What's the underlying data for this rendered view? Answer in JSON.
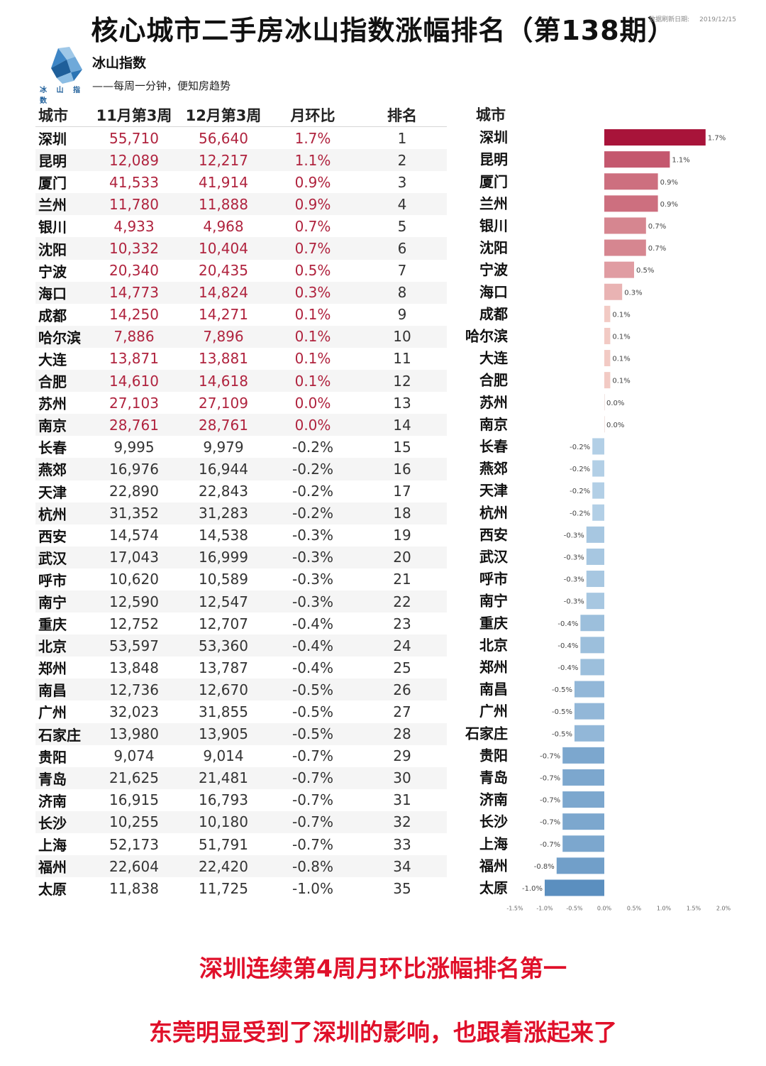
{
  "title": "核心城市二手房冰山指数涨幅排名（第138期）",
  "update_label": "数据刷新日期:",
  "update_date": "2019/12/15",
  "brand": {
    "logo_text": "冰 山 指 数",
    "name": "冰山指数",
    "slogan": "——每周一分钟，便知房趋势"
  },
  "table": {
    "headers": [
      "城市",
      "11月第3周",
      "12月第3周",
      "月环比",
      "排名"
    ],
    "rows": [
      [
        "深圳",
        "55,710",
        "56,640",
        "1.7%",
        "1"
      ],
      [
        "昆明",
        "12,089",
        "12,217",
        "1.1%",
        "2"
      ],
      [
        "厦门",
        "41,533",
        "41,914",
        "0.9%",
        "3"
      ],
      [
        "兰州",
        "11,780",
        "11,888",
        "0.9%",
        "4"
      ],
      [
        "银川",
        "4,933",
        "4,968",
        "0.7%",
        "5"
      ],
      [
        "沈阳",
        "10,332",
        "10,404",
        "0.7%",
        "6"
      ],
      [
        "宁波",
        "20,340",
        "20,435",
        "0.5%",
        "7"
      ],
      [
        "海口",
        "14,773",
        "14,824",
        "0.3%",
        "8"
      ],
      [
        "成都",
        "14,250",
        "14,271",
        "0.1%",
        "9"
      ],
      [
        "哈尔滨",
        "7,886",
        "7,896",
        "0.1%",
        "10"
      ],
      [
        "大连",
        "13,871",
        "13,881",
        "0.1%",
        "11"
      ],
      [
        "合肥",
        "14,610",
        "14,618",
        "0.1%",
        "12"
      ],
      [
        "苏州",
        "27,103",
        "27,109",
        "0.0%",
        "13"
      ],
      [
        "南京",
        "28,761",
        "28,761",
        "0.0%",
        "14"
      ],
      [
        "长春",
        "9,995",
        "9,979",
        "-0.2%",
        "15"
      ],
      [
        "燕郊",
        "16,976",
        "16,944",
        "-0.2%",
        "16"
      ],
      [
        "天津",
        "22,890",
        "22,843",
        "-0.2%",
        "17"
      ],
      [
        "杭州",
        "31,352",
        "31,283",
        "-0.2%",
        "18"
      ],
      [
        "西安",
        "14,574",
        "14,538",
        "-0.3%",
        "19"
      ],
      [
        "武汉",
        "17,043",
        "16,999",
        "-0.3%",
        "20"
      ],
      [
        "呼市",
        "10,620",
        "10,589",
        "-0.3%",
        "21"
      ],
      [
        "南宁",
        "12,590",
        "12,547",
        "-0.3%",
        "22"
      ],
      [
        "重庆",
        "12,752",
        "12,707",
        "-0.4%",
        "23"
      ],
      [
        "北京",
        "53,597",
        "53,360",
        "-0.4%",
        "24"
      ],
      [
        "郑州",
        "13,848",
        "13,787",
        "-0.4%",
        "25"
      ],
      [
        "南昌",
        "12,736",
        "12,670",
        "-0.5%",
        "26"
      ],
      [
        "广州",
        "32,023",
        "31,855",
        "-0.5%",
        "27"
      ],
      [
        "石家庄",
        "13,980",
        "13,905",
        "-0.5%",
        "28"
      ],
      [
        "贵阳",
        "9,074",
        "9,014",
        "-0.7%",
        "29"
      ],
      [
        "青岛",
        "21,625",
        "21,481",
        "-0.7%",
        "30"
      ],
      [
        "济南",
        "16,915",
        "16,793",
        "-0.7%",
        "31"
      ],
      [
        "长沙",
        "10,255",
        "10,180",
        "-0.7%",
        "32"
      ],
      [
        "上海",
        "52,173",
        "51,791",
        "-0.7%",
        "33"
      ],
      [
        "福州",
        "22,604",
        "22,420",
        "-0.8%",
        "34"
      ],
      [
        "太原",
        "11,838",
        "11,725",
        "-1.0%",
        "35"
      ]
    ]
  },
  "chart_data": {
    "type": "bar",
    "orientation": "horizontal",
    "category_header": "城市",
    "categories": [
      "深圳",
      "昆明",
      "厦门",
      "兰州",
      "银川",
      "沈阳",
      "宁波",
      "海口",
      "成都",
      "哈尔滨",
      "大连",
      "合肥",
      "苏州",
      "南京",
      "长春",
      "燕郊",
      "天津",
      "杭州",
      "西安",
      "武汉",
      "呼市",
      "南宁",
      "重庆",
      "北京",
      "郑州",
      "南昌",
      "广州",
      "石家庄",
      "贵阳",
      "青岛",
      "济南",
      "长沙",
      "上海",
      "福州",
      "太原"
    ],
    "values": [
      1.7,
      1.1,
      0.9,
      0.9,
      0.7,
      0.7,
      0.5,
      0.3,
      0.1,
      0.1,
      0.1,
      0.1,
      0.0,
      0.0,
      -0.2,
      -0.2,
      -0.2,
      -0.2,
      -0.3,
      -0.3,
      -0.3,
      -0.3,
      -0.4,
      -0.4,
      -0.4,
      -0.5,
      -0.5,
      -0.5,
      -0.7,
      -0.7,
      -0.7,
      -0.7,
      -0.7,
      -0.8,
      -1.0
    ],
    "data_labels": [
      "1.7%",
      "1.1%",
      "0.9%",
      "0.9%",
      "0.7%",
      "0.7%",
      "0.5%",
      "0.3%",
      "0.1%",
      "0.1%",
      "0.1%",
      "0.1%",
      "0.0%",
      "0.0%",
      "-0.2%",
      "-0.2%",
      "-0.2%",
      "-0.2%",
      "-0.3%",
      "-0.3%",
      "-0.3%",
      "-0.3%",
      "-0.4%",
      "-0.4%",
      "-0.4%",
      "-0.5%",
      "-0.5%",
      "-0.5%",
      "-0.7%",
      "-0.7%",
      "-0.7%",
      "-0.7%",
      "-0.7%",
      "-0.8%",
      "-1.0%"
    ],
    "xlim": [
      -1.5,
      2.0
    ],
    "x_ticks": [
      -1.5,
      -1.0,
      -0.5,
      0.0,
      0.5,
      1.0,
      1.5,
      2.0
    ],
    "x_tick_labels": [
      "-1.5%",
      "-1.0%",
      "-0.5%",
      "0.0%",
      "0.5%",
      "1.0%",
      "1.5%",
      "2.0%"
    ],
    "grid": false,
    "colors": {
      "positive_max": "#a8143a",
      "positive_min": "#f7d5cd",
      "negative_min": "#c8dff0",
      "negative_max": "#5b8fbf"
    }
  },
  "notes": [
    "深圳连续第4周月环比涨幅排名第一",
    "东莞明显受到了深圳的影响，也跟着涨起来了"
  ]
}
